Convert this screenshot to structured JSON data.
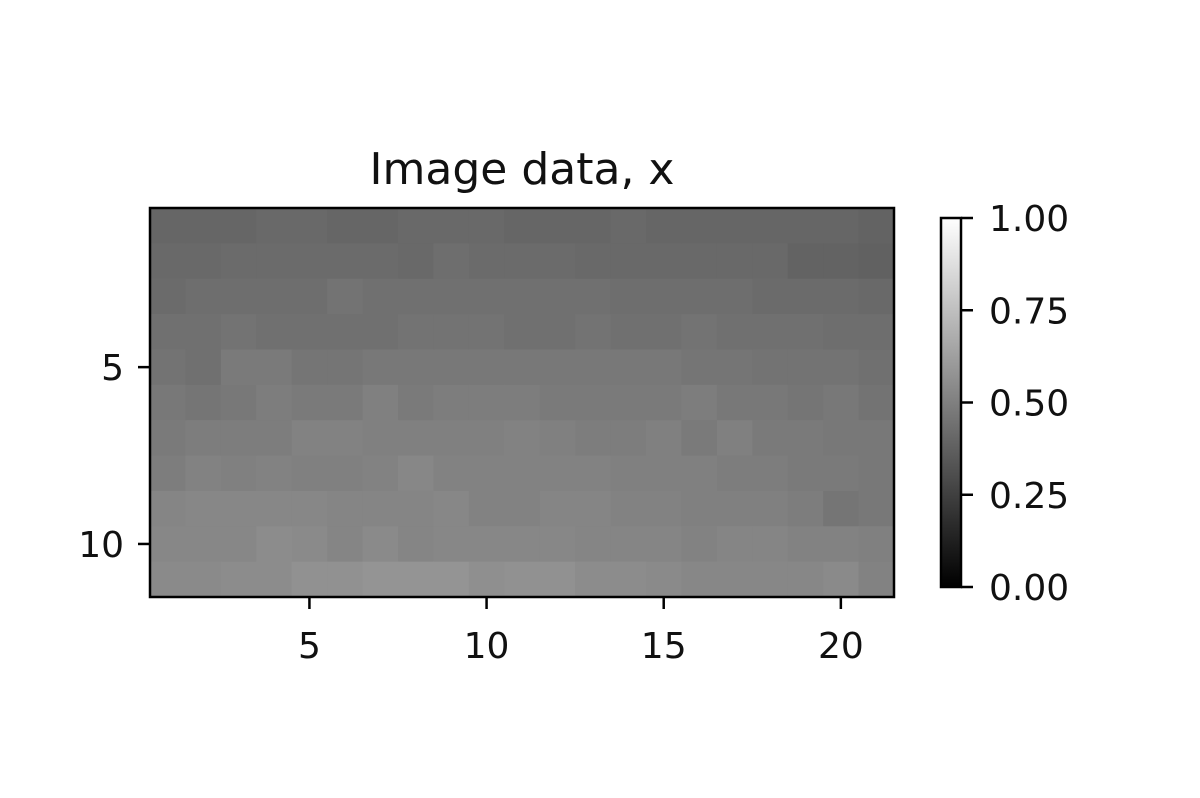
{
  "chart_data": {
    "type": "heatmap",
    "title": "Image data, x",
    "xlabel": "",
    "ylabel": "",
    "colormap": "gray",
    "rows": 11,
    "cols": 21,
    "x_range": [
      1,
      21
    ],
    "y_range": [
      1,
      11
    ],
    "x_ticks": [
      5,
      10,
      15,
      20
    ],
    "x_tick_labels": [
      "5",
      "10",
      "15",
      "20"
    ],
    "y_ticks": [
      5,
      10
    ],
    "y_tick_labels": [
      "5",
      "10"
    ],
    "vmin": 0,
    "vmax": 1,
    "colorbar": {
      "ticks": [
        0,
        0.25,
        0.5,
        0.75,
        1
      ],
      "tick_labels": [
        "0.00",
        "0.25",
        "0.50",
        "0.75",
        "1.00"
      ]
    },
    "values": [
      [
        0.4,
        0.4,
        0.4,
        0.41,
        0.41,
        0.4,
        0.4,
        0.41,
        0.41,
        0.41,
        0.4,
        0.4,
        0.4,
        0.41,
        0.4,
        0.4,
        0.4,
        0.4,
        0.4,
        0.4,
        0.39
      ],
      [
        0.41,
        0.41,
        0.42,
        0.42,
        0.42,
        0.42,
        0.42,
        0.41,
        0.43,
        0.42,
        0.42,
        0.42,
        0.41,
        0.41,
        0.41,
        0.41,
        0.41,
        0.41,
        0.39,
        0.39,
        0.38
      ],
      [
        0.42,
        0.43,
        0.43,
        0.43,
        0.43,
        0.45,
        0.44,
        0.44,
        0.44,
        0.44,
        0.44,
        0.44,
        0.44,
        0.43,
        0.43,
        0.43,
        0.43,
        0.42,
        0.42,
        0.42,
        0.41
      ],
      [
        0.44,
        0.44,
        0.45,
        0.44,
        0.44,
        0.44,
        0.44,
        0.45,
        0.45,
        0.45,
        0.44,
        0.44,
        0.45,
        0.44,
        0.44,
        0.45,
        0.44,
        0.44,
        0.44,
        0.43,
        0.43
      ],
      [
        0.45,
        0.44,
        0.48,
        0.48,
        0.46,
        0.46,
        0.47,
        0.47,
        0.47,
        0.47,
        0.47,
        0.47,
        0.47,
        0.47,
        0.47,
        0.46,
        0.46,
        0.45,
        0.45,
        0.45,
        0.44
      ],
      [
        0.47,
        0.46,
        0.47,
        0.49,
        0.48,
        0.48,
        0.5,
        0.48,
        0.49,
        0.49,
        0.49,
        0.48,
        0.48,
        0.48,
        0.48,
        0.49,
        0.47,
        0.47,
        0.46,
        0.47,
        0.45
      ],
      [
        0.48,
        0.49,
        0.49,
        0.49,
        0.51,
        0.51,
        0.5,
        0.5,
        0.5,
        0.5,
        0.51,
        0.5,
        0.49,
        0.49,
        0.5,
        0.48,
        0.5,
        0.48,
        0.48,
        0.47,
        0.47
      ],
      [
        0.49,
        0.51,
        0.5,
        0.51,
        0.5,
        0.5,
        0.51,
        0.53,
        0.51,
        0.51,
        0.51,
        0.51,
        0.51,
        0.5,
        0.5,
        0.5,
        0.49,
        0.49,
        0.48,
        0.48,
        0.47
      ],
      [
        0.52,
        0.53,
        0.53,
        0.53,
        0.53,
        0.52,
        0.52,
        0.52,
        0.53,
        0.51,
        0.51,
        0.52,
        0.52,
        0.51,
        0.51,
        0.5,
        0.5,
        0.5,
        0.49,
        0.46,
        0.47
      ],
      [
        0.53,
        0.53,
        0.53,
        0.55,
        0.54,
        0.52,
        0.54,
        0.52,
        0.53,
        0.53,
        0.53,
        0.53,
        0.52,
        0.52,
        0.52,
        0.51,
        0.52,
        0.52,
        0.51,
        0.51,
        0.5
      ],
      [
        0.54,
        0.54,
        0.55,
        0.55,
        0.57,
        0.57,
        0.58,
        0.58,
        0.58,
        0.56,
        0.57,
        0.57,
        0.55,
        0.55,
        0.54,
        0.53,
        0.53,
        0.53,
        0.53,
        0.54,
        0.51
      ]
    ]
  }
}
